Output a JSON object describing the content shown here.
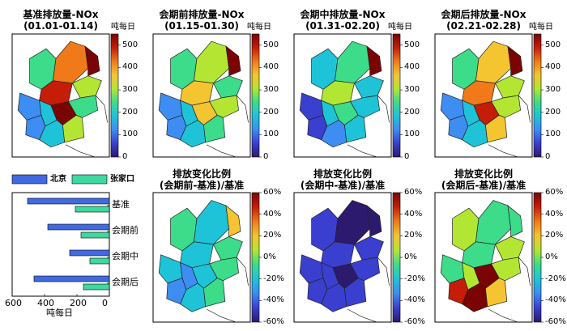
{
  "panels": [
    {
      "title_line1": "基准排放量-NOx",
      "title_line2": "(01.01-01.14)",
      "unit": "吨每日",
      "cb_ticks": [
        "500",
        "400",
        "300",
        "200",
        "100",
        "0"
      ]
    },
    {
      "title_line1": "会期前排放量-NOx",
      "title_line2": "(01.15-01.30)",
      "unit": "吨每日",
      "cb_ticks": [
        "500",
        "400",
        "300",
        "200",
        "100",
        "0"
      ]
    },
    {
      "title_line1": "会期中排放量-NOx",
      "title_line2": "(01.31-02.20)",
      "unit": "吨每日",
      "cb_ticks": [
        "500",
        "400",
        "300",
        "200",
        "100",
        "0"
      ]
    },
    {
      "title_line1": "会期后排放量-NOx",
      "title_line2": "(02.21-02.28)",
      "unit": "吨每日",
      "cb_ticks": [
        "500",
        "400",
        "300",
        "200",
        "100",
        "0"
      ]
    },
    {
      "title_line1": "排放变化比例",
      "title_line2": "(会期前-基准)/基准",
      "cb_ticks": [
        "60%",
        "40%",
        "20%",
        "0%",
        "-20%",
        "-40%",
        "-60%"
      ]
    },
    {
      "title_line1": "排放变化比例",
      "title_line2": "(会期中-基准)/基准",
      "cb_ticks": [
        "60%",
        "40%",
        "20%",
        "0%",
        "-20%",
        "-40%",
        "-60%"
      ]
    },
    {
      "title_line1": "排放变化比例",
      "title_line2": "(会期后-基准)/基准",
      "cb_ticks": [
        "60%",
        "40%",
        "20%",
        "0%",
        "-20%",
        "-40%",
        "-60%"
      ]
    }
  ],
  "colors": {
    "beijing": "#4169E1",
    "zhangjiakou": "#3CD9A0",
    "colormap": [
      "#2b1a6e",
      "#3a3fd0",
      "#3d8df2",
      "#1fc3d8",
      "#3cdc8a",
      "#b3e632",
      "#f5c431",
      "#f07a19",
      "#c51d08",
      "#7a0403"
    ]
  },
  "chart_data": {
    "type": "bar",
    "orientation": "horizontal",
    "categories": [
      "基准",
      "会期前",
      "会期中",
      "会期后"
    ],
    "series": [
      {
        "name": "北京",
        "values": [
          505,
          380,
          245,
          465
        ]
      },
      {
        "name": "张家口",
        "values": [
          210,
          175,
          120,
          160
        ]
      }
    ],
    "xlabel": "吨每日",
    "xlim": [
      0,
      600
    ],
    "x_ticks": [
      "600",
      "400",
      "200",
      "0"
    ],
    "x_reversed": true,
    "legend_position": "top"
  }
}
